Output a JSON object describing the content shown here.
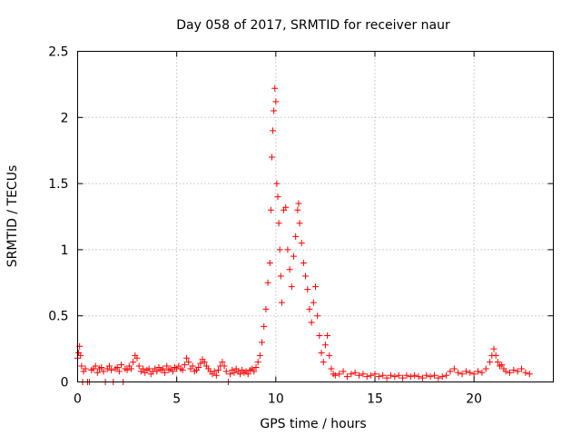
{
  "chart_data": {
    "type": "scatter",
    "title": "Day 058 of 2017, SRMTID for receiver naur",
    "xlabel": "GPS time / hours",
    "ylabel": "SRMTID / TECUs",
    "xlim": [
      0,
      24
    ],
    "ylim": [
      0,
      2.5
    ],
    "xticks": [
      0,
      5,
      10,
      15,
      20
    ],
    "xtick_labels": [
      "0",
      "5",
      "10",
      "15",
      "20"
    ],
    "yticks": [
      0,
      0.5,
      1,
      1.5,
      2,
      2.5
    ],
    "ytick_labels": [
      "0",
      "0.5",
      "1",
      "1.5",
      "2",
      "2.5"
    ],
    "grid": true,
    "marker": "plus",
    "color": "#ff0000",
    "points": [
      [
        0.0,
        0.18
      ],
      [
        0.05,
        0.22
      ],
      [
        0.1,
        0.27
      ],
      [
        0.15,
        0.2
      ],
      [
        0.2,
        0.12
      ],
      [
        0.25,
        0.0
      ],
      [
        0.3,
        0.08
      ],
      [
        0.4,
        0.1
      ],
      [
        0.5,
        0.0
      ],
      [
        0.6,
        0.0
      ],
      [
        0.7,
        0.09
      ],
      [
        0.8,
        0.1
      ],
      [
        0.9,
        0.12
      ],
      [
        1.0,
        0.07
      ],
      [
        1.1,
        0.1
      ],
      [
        1.2,
        0.11
      ],
      [
        1.3,
        0.08
      ],
      [
        1.4,
        0.0
      ],
      [
        1.5,
        0.1
      ],
      [
        1.6,
        0.12
      ],
      [
        1.7,
        0.09
      ],
      [
        1.8,
        0.0
      ],
      [
        1.9,
        0.1
      ],
      [
        2.0,
        0.11
      ],
      [
        2.1,
        0.08
      ],
      [
        2.2,
        0.13
      ],
      [
        2.3,
        0.0
      ],
      [
        2.4,
        0.1
      ],
      [
        2.5,
        0.09
      ],
      [
        2.6,
        0.12
      ],
      [
        2.7,
        0.1
      ],
      [
        2.8,
        0.15
      ],
      [
        2.9,
        0.2
      ],
      [
        3.0,
        0.18
      ],
      [
        3.1,
        0.12
      ],
      [
        3.2,
        0.08
      ],
      [
        3.3,
        0.1
      ],
      [
        3.4,
        0.07
      ],
      [
        3.5,
        0.09
      ],
      [
        3.6,
        0.1
      ],
      [
        3.7,
        0.06
      ],
      [
        3.8,
        0.08
      ],
      [
        3.9,
        0.1
      ],
      [
        4.0,
        0.08
      ],
      [
        4.1,
        0.11
      ],
      [
        4.2,
        0.09
      ],
      [
        4.3,
        0.1
      ],
      [
        4.4,
        0.07
      ],
      [
        4.5,
        0.12
      ],
      [
        4.6,
        0.09
      ],
      [
        4.7,
        0.1
      ],
      [
        4.8,
        0.08
      ],
      [
        4.9,
        0.11
      ],
      [
        5.0,
        0.1
      ],
      [
        5.1,
        0.12
      ],
      [
        5.2,
        0.1
      ],
      [
        5.3,
        0.09
      ],
      [
        5.4,
        0.13
      ],
      [
        5.5,
        0.18
      ],
      [
        5.6,
        0.15
      ],
      [
        5.7,
        0.1
      ],
      [
        5.8,
        0.12
      ],
      [
        5.9,
        0.08
      ],
      [
        6.0,
        0.09
      ],
      [
        6.1,
        0.11
      ],
      [
        6.2,
        0.14
      ],
      [
        6.3,
        0.17
      ],
      [
        6.4,
        0.15
      ],
      [
        6.5,
        0.12
      ],
      [
        6.6,
        0.1
      ],
      [
        6.7,
        0.08
      ],
      [
        6.8,
        0.06
      ],
      [
        6.9,
        0.08
      ],
      [
        7.0,
        0.05
      ],
      [
        7.1,
        0.09
      ],
      [
        7.2,
        0.12
      ],
      [
        7.3,
        0.15
      ],
      [
        7.4,
        0.12
      ],
      [
        7.5,
        0.08
      ],
      [
        7.6,
        0.0
      ],
      [
        7.7,
        0.06
      ],
      [
        7.8,
        0.09
      ],
      [
        7.9,
        0.07
      ],
      [
        8.0,
        0.1
      ],
      [
        8.1,
        0.08
      ],
      [
        8.2,
        0.06
      ],
      [
        8.3,
        0.09
      ],
      [
        8.4,
        0.07
      ],
      [
        8.5,
        0.08
      ],
      [
        8.6,
        0.06
      ],
      [
        8.7,
        0.09
      ],
      [
        8.8,
        0.1
      ],
      [
        8.9,
        0.08
      ],
      [
        9.0,
        0.11
      ],
      [
        9.1,
        0.15
      ],
      [
        9.2,
        0.2
      ],
      [
        9.3,
        0.3
      ],
      [
        9.4,
        0.42
      ],
      [
        9.5,
        0.55
      ],
      [
        9.6,
        0.75
      ],
      [
        9.7,
        0.9
      ],
      [
        9.75,
        1.3
      ],
      [
        9.8,
        1.7
      ],
      [
        9.85,
        1.9
      ],
      [
        9.9,
        2.05
      ],
      [
        9.95,
        2.22
      ],
      [
        10.0,
        2.12
      ],
      [
        10.05,
        1.5
      ],
      [
        10.1,
        1.4
      ],
      [
        10.15,
        1.2
      ],
      [
        10.2,
        1.0
      ],
      [
        10.25,
        0.8
      ],
      [
        10.3,
        0.6
      ],
      [
        10.4,
        1.3
      ],
      [
        10.5,
        1.32
      ],
      [
        10.6,
        1.0
      ],
      [
        10.7,
        0.85
      ],
      [
        10.8,
        0.72
      ],
      [
        10.9,
        0.95
      ],
      [
        11.0,
        1.1
      ],
      [
        11.1,
        1.3
      ],
      [
        11.15,
        1.35
      ],
      [
        11.2,
        1.2
      ],
      [
        11.3,
        1.05
      ],
      [
        11.4,
        0.9
      ],
      [
        11.5,
        0.8
      ],
      [
        11.6,
        0.7
      ],
      [
        11.7,
        0.55
      ],
      [
        11.8,
        0.45
      ],
      [
        11.9,
        0.6
      ],
      [
        12.0,
        0.72
      ],
      [
        12.1,
        0.5
      ],
      [
        12.2,
        0.35
      ],
      [
        12.3,
        0.22
      ],
      [
        12.4,
        0.15
      ],
      [
        12.5,
        0.28
      ],
      [
        12.6,
        0.35
      ],
      [
        12.7,
        0.2
      ],
      [
        12.8,
        0.1
      ],
      [
        12.9,
        0.06
      ],
      [
        13.0,
        0.05
      ],
      [
        13.2,
        0.06
      ],
      [
        13.4,
        0.08
      ],
      [
        13.6,
        0.04
      ],
      [
        13.8,
        0.06
      ],
      [
        14.0,
        0.07
      ],
      [
        14.2,
        0.05
      ],
      [
        14.4,
        0.06
      ],
      [
        14.6,
        0.04
      ],
      [
        14.8,
        0.05
      ],
      [
        15.0,
        0.06
      ],
      [
        15.2,
        0.04
      ],
      [
        15.4,
        0.05
      ],
      [
        15.6,
        0.03
      ],
      [
        15.8,
        0.05
      ],
      [
        16.0,
        0.04
      ],
      [
        16.2,
        0.05
      ],
      [
        16.4,
        0.03
      ],
      [
        16.6,
        0.05
      ],
      [
        16.8,
        0.04
      ],
      [
        17.0,
        0.05
      ],
      [
        17.2,
        0.04
      ],
      [
        17.4,
        0.03
      ],
      [
        17.6,
        0.05
      ],
      [
        17.8,
        0.04
      ],
      [
        18.0,
        0.05
      ],
      [
        18.2,
        0.03
      ],
      [
        18.4,
        0.04
      ],
      [
        18.6,
        0.05
      ],
      [
        18.8,
        0.08
      ],
      [
        19.0,
        0.1
      ],
      [
        19.2,
        0.07
      ],
      [
        19.4,
        0.06
      ],
      [
        19.6,
        0.08
      ],
      [
        19.8,
        0.07
      ],
      [
        20.0,
        0.06
      ],
      [
        20.2,
        0.08
      ],
      [
        20.4,
        0.07
      ],
      [
        20.6,
        0.1
      ],
      [
        20.8,
        0.15
      ],
      [
        20.9,
        0.2
      ],
      [
        21.0,
        0.25
      ],
      [
        21.1,
        0.2
      ],
      [
        21.2,
        0.15
      ],
      [
        21.3,
        0.12
      ],
      [
        21.4,
        0.13
      ],
      [
        21.5,
        0.1
      ],
      [
        21.6,
        0.08
      ],
      [
        21.8,
        0.07
      ],
      [
        22.0,
        0.09
      ],
      [
        22.2,
        0.08
      ],
      [
        22.4,
        0.1
      ],
      [
        22.6,
        0.07
      ],
      [
        22.8,
        0.06
      ]
    ]
  }
}
